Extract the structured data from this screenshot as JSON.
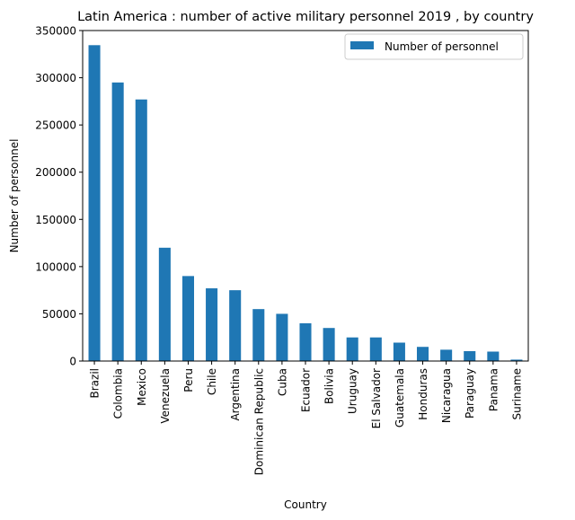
{
  "chart_data": {
    "type": "bar",
    "title": "Latin America : number of active military personnel 2019 , by country",
    "xlabel": "Country",
    "ylabel": "Number of personnel",
    "ylim": [
      0,
      350000
    ],
    "yticks": [
      0,
      50000,
      100000,
      150000,
      200000,
      250000,
      300000,
      350000
    ],
    "ytick_labels": [
      "0",
      "50000",
      "100000",
      "150000",
      "200000",
      "250000",
      "300000",
      "350000"
    ],
    "categories": [
      "Brazil",
      "Colombia",
      "Mexico",
      "Venezuela",
      "Peru",
      "Chile",
      "Argentina",
      "Dominican Republic",
      "Cuba",
      "Ecuador",
      "Bolivia",
      "Uruguay",
      "El Salvador",
      "Guatemala",
      "Honduras",
      "Nicaragua",
      "Paraguay",
      "Panama",
      "Suriname"
    ],
    "series": [
      {
        "name": "Number of personnel",
        "values": [
          334500,
          295000,
          277000,
          120000,
          90000,
          77000,
          75000,
          55000,
          50000,
          40000,
          35000,
          25000,
          25000,
          19500,
          15000,
          12000,
          10500,
          10000,
          1500
        ]
      }
    ],
    "grid": false,
    "legend_position": "top-right",
    "colors": {
      "bar": "#1f77b4",
      "axis": "#000000",
      "legend_border": "#cccccc"
    }
  }
}
